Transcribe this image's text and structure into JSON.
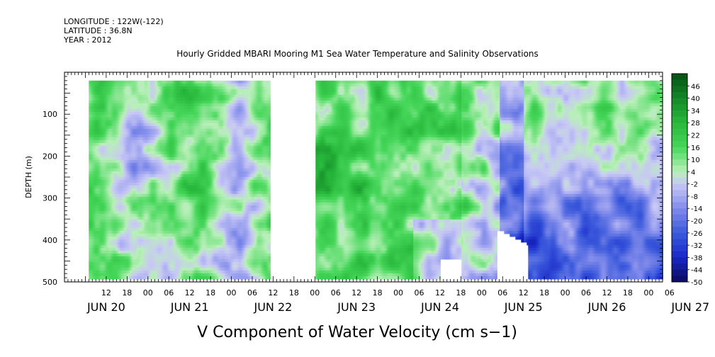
{
  "header": {
    "longitude": "LONGITUDE : 122W(-122)",
    "latitude": "LATITUDE : 36.8N",
    "year": "YEAR : 2012"
  },
  "chart_data": {
    "type": "heatmap",
    "title": "Hourly Gridded MBARI Mooring M1 Sea Water Temperature and Salinity Observations",
    "xlabel": "V Component of Water Velocity (cm s−1)",
    "ylabel": "DEPTH (m)",
    "ylim": [
      0,
      500
    ],
    "y_reversed": true,
    "y_ticks": [
      100,
      200,
      300,
      400,
      500
    ],
    "x_hour_labels": [
      "12",
      "18",
      "00",
      "06",
      "12",
      "18",
      "00",
      "06",
      "12",
      "18",
      "00",
      "06",
      "12",
      "18",
      "00",
      "06",
      "12",
      "18",
      "00",
      "06",
      "12",
      "18",
      "00",
      "06",
      "12",
      "18",
      "00",
      "06"
    ],
    "x_day_labels": [
      "JUN 20",
      "JUN 21",
      "JUN 22",
      "JUN 23",
      "JUN 24",
      "JUN 25",
      "JUN 26",
      "JUN 27"
    ],
    "colorbar_labels": [
      "46",
      "40",
      "34",
      "28",
      "22",
      "16",
      "10",
      "4",
      "-2",
      "-8",
      "-14",
      "-20",
      "-26",
      "-32",
      "-38",
      "-44",
      "-50"
    ],
    "colorbar_range": [
      -50,
      52
    ],
    "colorbar_step": 3,
    "data_depth_range": [
      20,
      490
    ],
    "gaps": [
      {
        "from": "JUN 22 11:00",
        "to": "JUN 23 00:00",
        "note": "no data"
      }
    ],
    "grid_x": "hourly 2012-06-20 to 2012-06-27",
    "pattern": [
      {
        "period": "JUN 20 18 - JUN 22 10",
        "v_range": [
          -14,
          22
        ],
        "dominant": "mixed green/blue vertical bands"
      },
      {
        "period": "JUN 23 00 - JUN 24 18",
        "v_range": [
          -8,
          46
        ],
        "dominant": "green, strongest 150-300 m near JUN 23 06"
      },
      {
        "period": "JUN 24 18 - JUN 27 10",
        "v_range": [
          -38,
          16
        ],
        "dominant": "blue at depth, green near surface"
      }
    ]
  }
}
